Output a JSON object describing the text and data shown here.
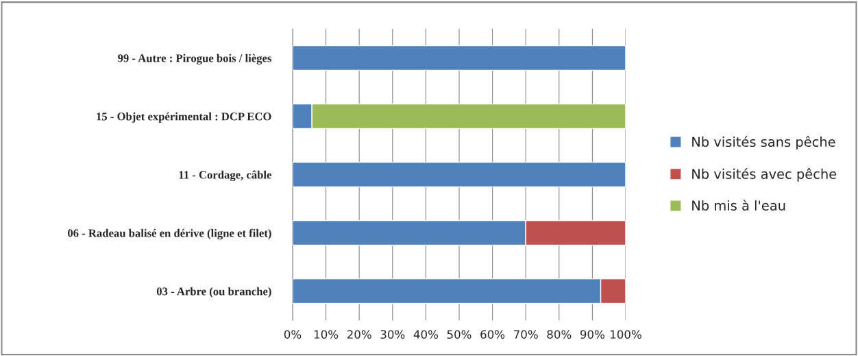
{
  "chart_data": {
    "type": "bar",
    "orientation": "horizontal",
    "stacked": true,
    "categories": [
      "99 - Autre : Pirogue bois / lièges",
      "15 - Objet expérimental : DCP ECO",
      "11 - Cordage, câble",
      "06 - Radeau balisé en dérive (ligne et filet)",
      "03 - Arbre (ou branche)"
    ],
    "series": [
      {
        "name": "Nb visités sans pêche",
        "color": "#4f81bd",
        "values": [
          100,
          5.8,
          100,
          70,
          92.5
        ]
      },
      {
        "name": "Nb visités avec pêche",
        "color": "#c0504d",
        "values": [
          null,
          null,
          null,
          30,
          7.5
        ]
      },
      {
        "name": "Nb mis à l'eau",
        "color": "#9bbb59",
        "values": [
          null,
          94.2,
          null,
          null,
          null
        ]
      }
    ],
    "xlim": [
      0,
      100
    ],
    "xticks": [
      {
        "value": 0,
        "label": "0%"
      },
      {
        "value": 10,
        "label": "10%"
      },
      {
        "value": 20,
        "label": "20%"
      },
      {
        "value": 30,
        "label": "30%"
      },
      {
        "value": 40,
        "label": "40%"
      },
      {
        "value": 50,
        "label": "50%"
      },
      {
        "value": 60,
        "label": "60%"
      },
      {
        "value": 70,
        "label": "70%"
      },
      {
        "value": 80,
        "label": "80%"
      },
      {
        "value": 90,
        "label": "90%"
      },
      {
        "value": 100,
        "label": "100%"
      }
    ],
    "grid": "x",
    "legend": "right"
  }
}
